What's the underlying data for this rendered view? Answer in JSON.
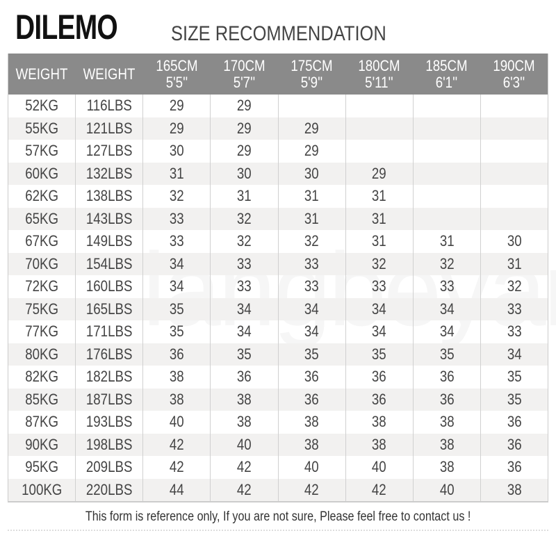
{
  "brand": "DILEMO",
  "title": "SIZE RECOMMENDATION",
  "watermark": "langbeyar",
  "columns": [
    {
      "l1": "WEIGHT",
      "l2": ""
    },
    {
      "l1": "WEIGHT",
      "l2": ""
    },
    {
      "l1": "165CM",
      "l2": "5'5''"
    },
    {
      "l1": "170CM",
      "l2": "5'7''"
    },
    {
      "l1": "175CM",
      "l2": "5'9''"
    },
    {
      "l1": "180CM",
      "l2": "5'11''"
    },
    {
      "l1": "185CM",
      "l2": "6'1''"
    },
    {
      "l1": "190CM",
      "l2": "6'3''"
    }
  ],
  "rows": [
    [
      "52KG",
      "116LBS",
      "29",
      "29",
      "",
      "",
      "",
      ""
    ],
    [
      "55KG",
      "121LBS",
      "29",
      "29",
      "29",
      "",
      "",
      ""
    ],
    [
      "57KG",
      "127LBS",
      "30",
      "29",
      "29",
      "",
      "",
      ""
    ],
    [
      "60KG",
      "132LBS",
      "31",
      "30",
      "30",
      "29",
      "",
      ""
    ],
    [
      "62KG",
      "138LBS",
      "32",
      "31",
      "31",
      "31",
      "",
      ""
    ],
    [
      "65KG",
      "143LBS",
      "33",
      "32",
      "31",
      "31",
      "",
      ""
    ],
    [
      "67KG",
      "149LBS",
      "33",
      "32",
      "32",
      "31",
      "31",
      "30"
    ],
    [
      "70KG",
      "154LBS",
      "34",
      "33",
      "33",
      "32",
      "32",
      "31"
    ],
    [
      "72KG",
      "160LBS",
      "34",
      "33",
      "33",
      "33",
      "33",
      "32"
    ],
    [
      "75KG",
      "165LBS",
      "35",
      "34",
      "34",
      "34",
      "34",
      "33"
    ],
    [
      "77KG",
      "171LBS",
      "35",
      "34",
      "34",
      "34",
      "34",
      "33"
    ],
    [
      "80KG",
      "176LBS",
      "36",
      "35",
      "35",
      "35",
      "35",
      "34"
    ],
    [
      "82KG",
      "182LBS",
      "38",
      "36",
      "36",
      "36",
      "36",
      "35"
    ],
    [
      "85KG",
      "187LBS",
      "38",
      "38",
      "36",
      "36",
      "36",
      "35"
    ],
    [
      "87KG",
      "193LBS",
      "40",
      "38",
      "38",
      "38",
      "38",
      "36"
    ],
    [
      "90KG",
      "198LBS",
      "42",
      "40",
      "38",
      "38",
      "38",
      "36"
    ],
    [
      "95KG",
      "209LBS",
      "42",
      "42",
      "40",
      "40",
      "38",
      "36"
    ],
    [
      "100KG",
      "220LBS",
      "44",
      "42",
      "42",
      "42",
      "40",
      "38"
    ]
  ],
  "note": "This form is reference only, If you are not sure, Please feel free to contact us !",
  "colors": {
    "header_bg": "#8a8a8a",
    "alt_row": "#f2f1f0",
    "text": "#444444"
  }
}
